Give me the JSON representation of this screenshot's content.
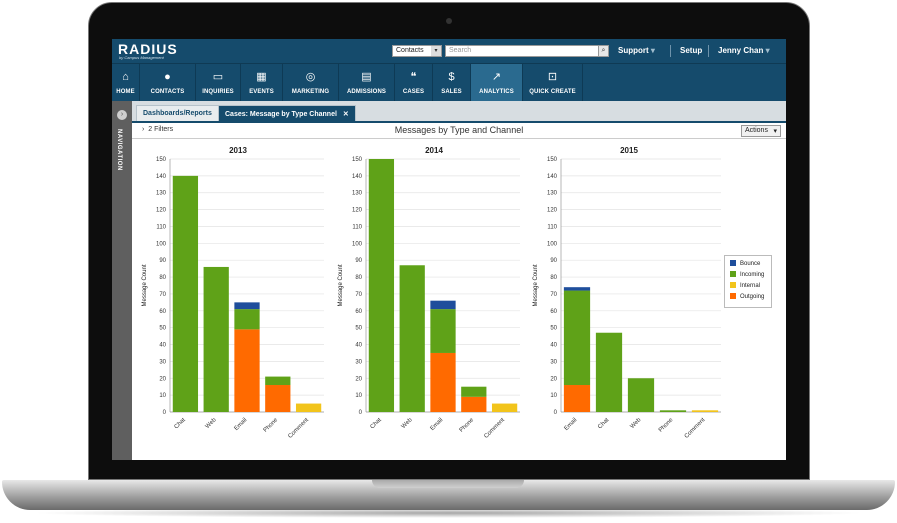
{
  "app": {
    "logo": "RADIUS",
    "logo_sub": "by Campus Management"
  },
  "topbar": {
    "context_select": "Contacts",
    "search_placeholder": "Search",
    "support": "Support",
    "setup": "Setup",
    "user": "Jenny Chan"
  },
  "nav": {
    "items": [
      {
        "label": "HOME",
        "icon": "home-icon"
      },
      {
        "label": "CONTACTS",
        "icon": "contacts-icon"
      },
      {
        "label": "INQUIRIES",
        "icon": "inbox-icon"
      },
      {
        "label": "EVENTS",
        "icon": "calendar-icon"
      },
      {
        "label": "MARKETING",
        "icon": "target-icon"
      },
      {
        "label": "ADMISSIONS",
        "icon": "document-icon"
      },
      {
        "label": "CASES",
        "icon": "chat-icon"
      },
      {
        "label": "SALES",
        "icon": "dollar-icon"
      },
      {
        "label": "ANALYTICS",
        "icon": "analytics-icon"
      },
      {
        "label": "QUICK CREATE",
        "icon": "quick-create-icon"
      }
    ],
    "active": "ANALYTICS"
  },
  "sidebar": {
    "label": "NAVIGATION"
  },
  "tabs": [
    {
      "label": "Dashboards/Reports"
    },
    {
      "label": "Cases: Message by Type Channel"
    }
  ],
  "filterbar": {
    "filters": "2 Filters",
    "title": "Messages by Type and Channel",
    "actions": "Actions"
  },
  "colors": {
    "Bounce": "#1f4e9c",
    "Incoming": "#5fa218",
    "Internal": "#f2c41b",
    "Outgoing": "#ff6a00"
  },
  "chart_data": [
    {
      "type": "bar",
      "stacked": true,
      "title": "2013",
      "ylabel": "Message Count",
      "ylim": [
        0,
        150
      ],
      "categories": [
        "Chat",
        "Web",
        "Email",
        "Phone",
        "Comment"
      ],
      "series": [
        {
          "name": "Outgoing",
          "values": [
            0,
            0,
            49,
            16,
            0
          ]
        },
        {
          "name": "Internal",
          "values": [
            0,
            0,
            0,
            0,
            5
          ]
        },
        {
          "name": "Incoming",
          "values": [
            140,
            86,
            12,
            5,
            0
          ]
        },
        {
          "name": "Bounce",
          "values": [
            0,
            0,
            4,
            0,
            0
          ]
        }
      ]
    },
    {
      "type": "bar",
      "stacked": true,
      "title": "2014",
      "ylabel": "Message Count",
      "ylim": [
        0,
        150
      ],
      "categories": [
        "Chat",
        "Web",
        "Email",
        "Phone",
        "Comment"
      ],
      "series": [
        {
          "name": "Outgoing",
          "values": [
            0,
            0,
            35,
            9,
            0
          ]
        },
        {
          "name": "Internal",
          "values": [
            0,
            0,
            0,
            0,
            5
          ]
        },
        {
          "name": "Incoming",
          "values": [
            150,
            87,
            26,
            6,
            0
          ]
        },
        {
          "name": "Bounce",
          "values": [
            0,
            0,
            5,
            0,
            0
          ]
        }
      ]
    },
    {
      "type": "bar",
      "stacked": true,
      "title": "2015",
      "ylabel": "Message Count",
      "ylim": [
        0,
        150
      ],
      "categories": [
        "Email",
        "Chat",
        "Web",
        "Phone",
        "Comment"
      ],
      "series": [
        {
          "name": "Outgoing",
          "values": [
            16,
            0,
            0,
            0,
            0
          ]
        },
        {
          "name": "Internal",
          "values": [
            0,
            0,
            0,
            0,
            1
          ]
        },
        {
          "name": "Incoming",
          "values": [
            56,
            47,
            20,
            1,
            0
          ]
        },
        {
          "name": "Bounce",
          "values": [
            2,
            0,
            0,
            0,
            0
          ]
        }
      ],
      "legend": "right"
    }
  ],
  "legend": {
    "entries": [
      "Bounce",
      "Incoming",
      "Internal",
      "Outgoing"
    ]
  }
}
